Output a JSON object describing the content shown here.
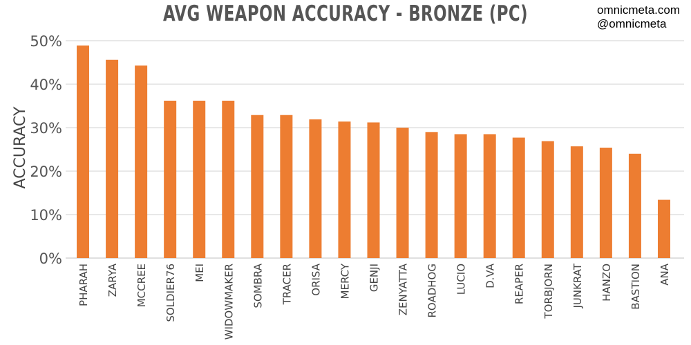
{
  "chart_data": {
    "type": "bar",
    "title": "AVG WEAPON ACCURACY - BRONZE (PC)",
    "ylabel": "ACCURACY",
    "xlabel": "",
    "ylim": [
      0,
      50
    ],
    "yticks": [
      "0%",
      "10%",
      "20%",
      "30%",
      "40%",
      "50%"
    ],
    "grid": true,
    "bar_color": "#ED7D31",
    "categories": [
      "PHARAH",
      "ZARYA",
      "MCCREE",
      "SOLDIER76",
      "MEI",
      "WIDOWMAKER",
      "SOMBRA",
      "TRACER",
      "ORISA",
      "MERCY",
      "GENJI",
      "ZENYATTA",
      "ROADHOG",
      "LUCIO",
      "D.VA",
      "REAPER",
      "TORBJORN",
      "JUNKRAT",
      "HANZO",
      "BASTION",
      "ANA"
    ],
    "values": [
      48.9,
      45.6,
      44.3,
      36.2,
      36.2,
      36.2,
      32.9,
      32.9,
      31.9,
      31.4,
      31.2,
      30.0,
      29.0,
      28.5,
      28.5,
      27.7,
      26.9,
      25.7,
      25.4,
      24.0,
      13.4
    ]
  },
  "watermark": {
    "line1": "omnicmeta.com",
    "line2": "@omnicmeta"
  }
}
